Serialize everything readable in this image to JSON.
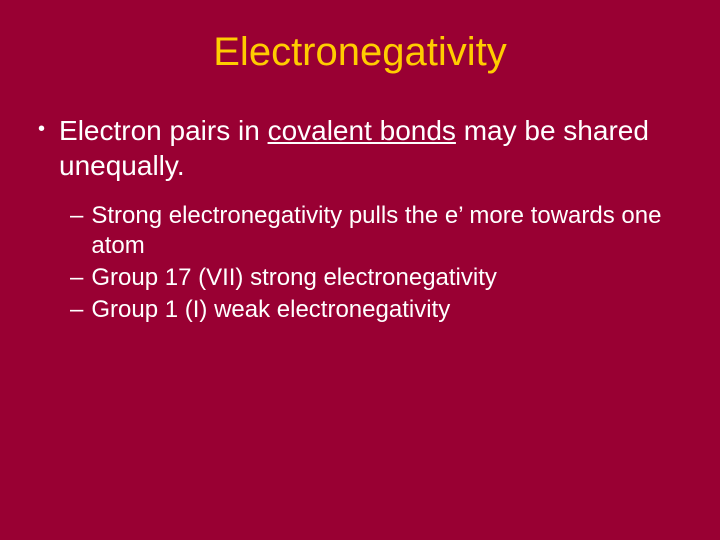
{
  "colors": {
    "background": "#990033",
    "title": "#ffcc00",
    "body_text": "#ffffff"
  },
  "typography": {
    "title_fontsize": 40,
    "l1_fontsize": 28,
    "l2_fontsize": 24,
    "font_family": "Arial"
  },
  "title": "Electronegativity",
  "bullets": [
    {
      "marker": "•",
      "pre": "Electron pairs in ",
      "underlined": "covalent bonds",
      "post": " may be shared unequally.",
      "sub": [
        {
          "marker": "–",
          "text": "Strong electronegativity pulls the e’ more towards one atom"
        },
        {
          "marker": "–",
          "text": "Group 17 (VII) strong electronegativity"
        },
        {
          "marker": "–",
          "text": "Group 1 (I) weak electronegativity"
        }
      ]
    }
  ]
}
